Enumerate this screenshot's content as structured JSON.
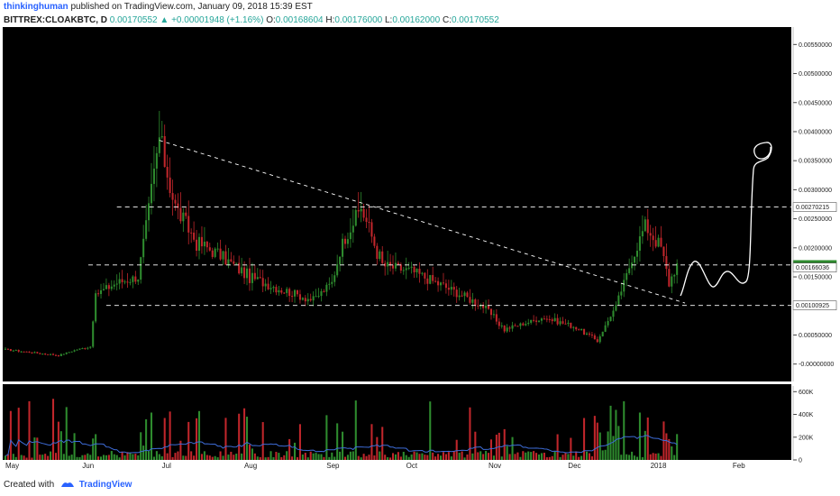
{
  "header": {
    "user": "thinkinghuman",
    "published": "published on TradingView.com, January 09, 2018 15:39 EST",
    "symbol": "BITTREX:CLOAKBTC, D",
    "last": "0.00170552",
    "change_icon": "triangle-up-icon",
    "change_glyph": "▲",
    "change": "+0.00001948 (+1.16%)",
    "o_label": "O:",
    "o": "0.00168604",
    "h_label": "H:",
    "h": "0.00176000",
    "l_label": "L:",
    "l": "0.00162000",
    "c_label": "C:",
    "c": "0.00170552"
  },
  "footer": {
    "created_with": "Created with",
    "brand": "TradingView",
    "brand_icon": "tradingview-logo-icon"
  },
  "colors": {
    "background": "#000000",
    "up": "#2e8b2e",
    "down": "#c0262b",
    "volume_ma": "#3d6bd6",
    "drawing": "#ffffff"
  },
  "chart_data": {
    "type": "candlestick",
    "price_axis_ticks": [
      "0.00550000",
      "0.00500000",
      "0.00450000",
      "0.00400000",
      "0.00350000",
      "0.00300000",
      "0.00250000",
      "0.00200000",
      "0.00150000",
      "0.00100000",
      "0.00050000",
      "-0.00000000"
    ],
    "price_labels": [
      {
        "text": "0.00270215",
        "value": 0.00270215,
        "style": "dashed"
      },
      {
        "text": "0.00170552",
        "value": 0.00170552,
        "style": "current"
      },
      {
        "text": "0.00166036",
        "value": 0.00166036,
        "style": "plain"
      },
      {
        "text": "0.00100925",
        "value": 0.00100925,
        "style": "dashed"
      }
    ],
    "volume_axis_ticks": [
      "600K",
      "400K",
      "200K",
      "0"
    ],
    "x_labels": [
      "May",
      "Jun",
      "Jul",
      "Aug",
      "Sep",
      "Oct",
      "Nov",
      "Dec",
      "2018",
      "Feb"
    ],
    "ylim": [
      -0.0003,
      0.0058
    ],
    "volume_lim": [
      0,
      650000
    ],
    "price_path": [
      [
        "May",
        0.00025
      ],
      [
        "May 21",
        0.00015
      ],
      [
        "May 28",
        0.00025
      ],
      [
        "Jun 02",
        0.0003
      ],
      [
        "Jun 04",
        0.0012
      ],
      [
        "Jun 12",
        0.0014
      ],
      [
        "Jun 20",
        0.0015
      ],
      [
        "Jun 24",
        0.0027
      ],
      [
        "Jun 28",
        0.0039
      ],
      [
        "Jul 04",
        0.0027
      ],
      [
        "Jul 12",
        0.0021
      ],
      [
        "Jul 20",
        0.0019
      ],
      [
        "Aug 01",
        0.0015
      ],
      [
        "Aug 15",
        0.00125
      ],
      [
        "Aug 25",
        0.0011
      ],
      [
        "Sep 01",
        0.0014
      ],
      [
        "Sep 05",
        0.0021
      ],
      [
        "Sep 12",
        0.0027
      ],
      [
        "Sep 20",
        0.0017
      ],
      [
        "Oct 01",
        0.0016
      ],
      [
        "Oct 15",
        0.0013
      ],
      [
        "Oct 28",
        0.001
      ],
      [
        "Nov 05",
        0.0006
      ],
      [
        "Nov 20",
        0.0008
      ],
      [
        "Dec 01",
        0.00065
      ],
      [
        "Dec 10",
        0.0004
      ],
      [
        "Dec 17",
        0.001
      ],
      [
        "Dec 23",
        0.0018
      ],
      [
        "Dec 28",
        0.0024
      ],
      [
        "Jan 03",
        0.002
      ],
      [
        "Jan 06",
        0.0014
      ],
      [
        "Jan 09",
        0.00170552
      ]
    ],
    "horizontal_lines": [
      0.00270215,
      0.00170552,
      0.00100925
    ],
    "trendline": [
      [
        "Jun 28",
        0.00385
      ],
      [
        "Jan 12",
        0.00105
      ]
    ]
  }
}
